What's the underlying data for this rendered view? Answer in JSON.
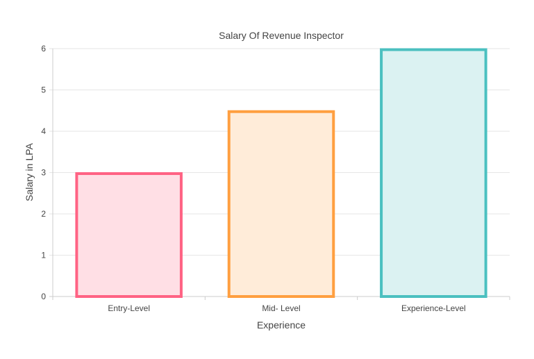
{
  "chart_data": {
    "type": "bar",
    "title": "Salary Of Revenue Inspector",
    "xlabel": "Experience",
    "ylabel": "Salary in LPA",
    "categories": [
      "Entry-Level",
      "Mid- Level",
      "Experience-Level"
    ],
    "values": [
      3,
      4.5,
      6
    ],
    "ylim": [
      0,
      6
    ],
    "yticks": [
      "0",
      "1",
      "2",
      "3",
      "4",
      "5",
      "6"
    ],
    "grid": true,
    "legend": "none",
    "border_colors": [
      "#ff6384",
      "#ff9f40",
      "#4bc0c0"
    ],
    "fill_colors": [
      "#ffdfe5",
      "#ffecd9",
      "#dbf2f2"
    ]
  }
}
